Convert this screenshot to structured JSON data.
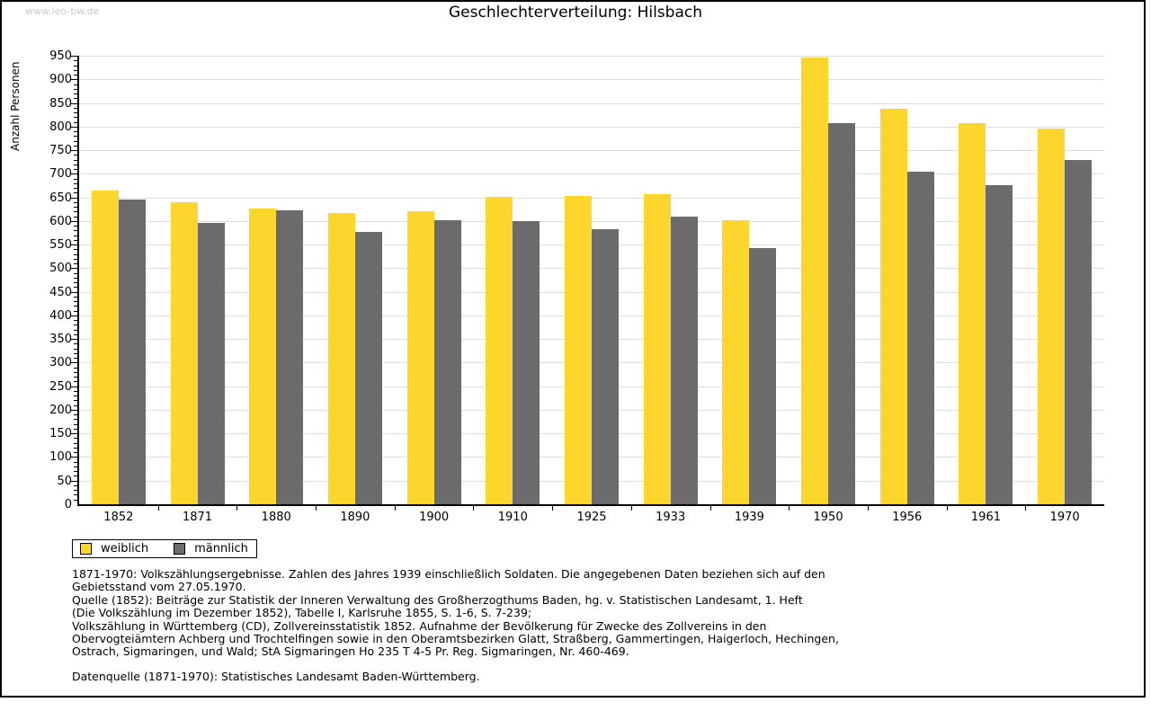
{
  "page": {
    "watermark": "www.leo-bw.de"
  },
  "chart_data": {
    "type": "bar",
    "title": "Geschlechterverteilung: Hilsbach",
    "xlabel": "",
    "ylabel": "Anzahl Personen",
    "ylim": [
      0,
      950
    ],
    "ytick_major_step": 50,
    "ytick_minor_step": 10,
    "grid": true,
    "legend_position": "bottom-left",
    "categories": [
      "1852",
      "1871",
      "1880",
      "1890",
      "1900",
      "1910",
      "1925",
      "1933",
      "1939",
      "1950",
      "1956",
      "1961",
      "1970"
    ],
    "series": [
      {
        "name": "weiblich",
        "color": "#FCD52D",
        "values": [
          665,
          640,
          626,
          616,
          621,
          651,
          653,
          656,
          601,
          947,
          838,
          808,
          795
        ]
      },
      {
        "name": "männlich",
        "color": "#6B6B6D",
        "values": [
          646,
          596,
          623,
          576,
          602,
          600,
          582,
          609,
          542,
          808,
          705,
          675,
          730
        ]
      }
    ]
  },
  "legend": {
    "items": [
      {
        "label": "weiblich",
        "color": "#FCD52D"
      },
      {
        "label": "männlich",
        "color": "#6B6B6D"
      }
    ]
  },
  "colors": {
    "grid": "#dedede",
    "axis": "#000000",
    "frame": "#000000",
    "watermark": "#c9c9c9"
  },
  "footnotes": {
    "lines": [
      "1871-1970: Volkszählungsergebnisse. Zahlen des Jahres 1939 einschließlich Soldaten. Die angegebenen Daten beziehen sich auf den",
      "Gebietsstand vom 27.05.1970.",
      "Quelle (1852): Beiträge zur Statistik der Inneren Verwaltung des Großherzogthums Baden, hg. v. Statistischen Landesamt, 1. Heft",
      "(Die Volkszählung im Dezember 1852), Tabelle I, Karlsruhe 1855, S. 1-6, S. 7-239;",
      "Volkszählung in Württemberg (CD), Zollvereinsstatistik 1852. Aufnahme der Bevölkerung für Zwecke des Zollvereins in den",
      "Obervogteiämtern Achberg und Trochtelfingen sowie in den Oberamtsbezirken Glatt, Straßberg, Gammertingen, Haigerloch, Hechingen,",
      "Ostrach, Sigmaringen, und Wald; StA Sigmaringen Ho 235 T 4-5 Pr. Reg. Sigmaringen, Nr. 460-469."
    ],
    "datasource": "Datenquelle (1871-1970): Statistisches Landesamt Baden-Württemberg."
  }
}
